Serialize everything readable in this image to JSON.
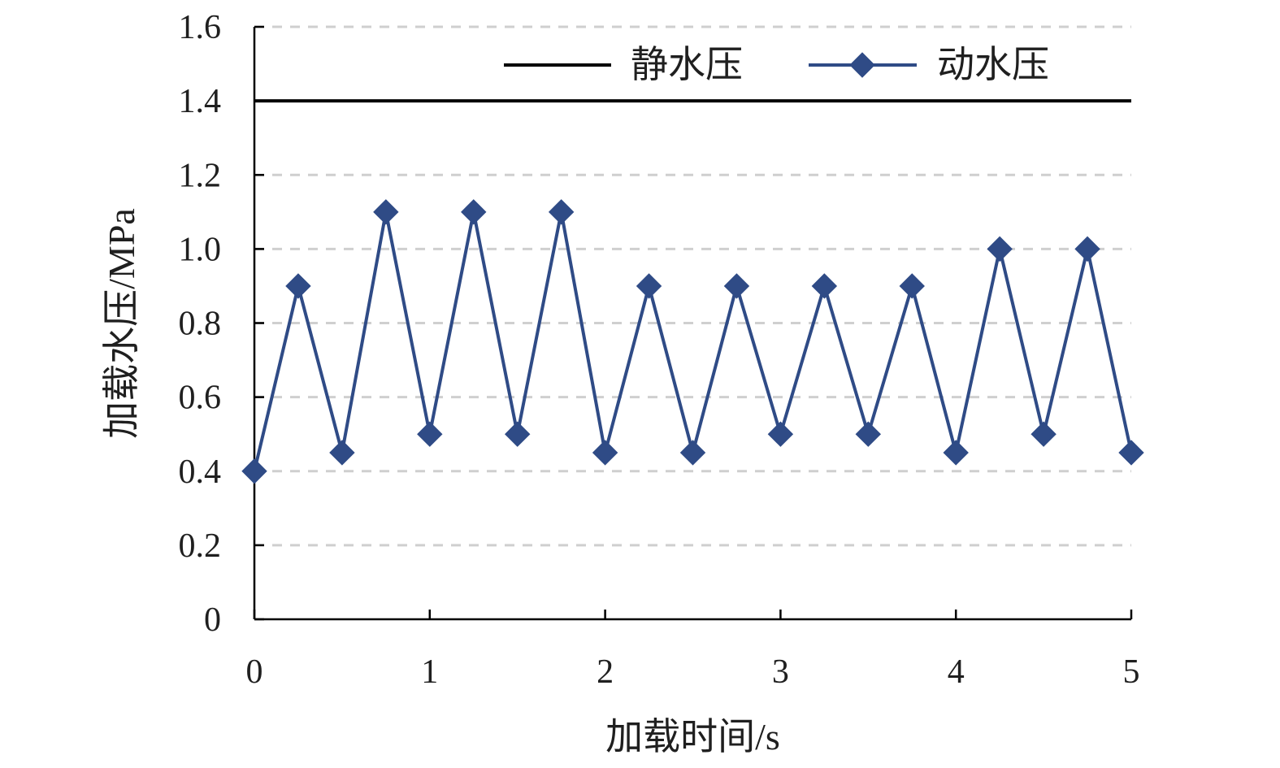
{
  "chart_data": {
    "type": "line",
    "title": "",
    "xlabel": "加载时间/s",
    "ylabel": "加载水压/MPa",
    "xlim": [
      0,
      5
    ],
    "ylim": [
      0,
      1.6
    ],
    "xticks": [
      0,
      1,
      2,
      3,
      4,
      5
    ],
    "xtick_labels": [
      "0",
      "1",
      "2",
      "3",
      "4",
      "5"
    ],
    "yticks": [
      0,
      0.2,
      0.4,
      0.6,
      0.8,
      1.0,
      1.2,
      1.4,
      1.6
    ],
    "ytick_labels": [
      "0",
      "0.2",
      "0.4",
      "0.6",
      "0.8",
      "1.0",
      "1.2",
      "1.4",
      "1.6"
    ],
    "grid": "horizontal dashed",
    "legend_position": "top",
    "series": [
      {
        "name": "静水压",
        "color": "#000000",
        "marker": "none",
        "x": [
          0,
          5
        ],
        "values": [
          1.4,
          1.4
        ]
      },
      {
        "name": "动水压",
        "color": "#2f4b86",
        "marker": "diamond",
        "x": [
          0,
          0.25,
          0.5,
          0.75,
          1.0,
          1.25,
          1.5,
          1.75,
          2.0,
          2.25,
          2.5,
          2.75,
          3.0,
          3.25,
          3.5,
          3.75,
          4.0,
          4.25,
          4.5,
          4.75,
          5.0
        ],
        "values": [
          0.4,
          0.9,
          0.45,
          1.1,
          0.5,
          1.1,
          0.5,
          1.1,
          0.45,
          0.9,
          0.45,
          0.9,
          0.5,
          0.9,
          0.5,
          0.9,
          0.45,
          1.0,
          0.5,
          1.0,
          0.45
        ]
      }
    ]
  }
}
